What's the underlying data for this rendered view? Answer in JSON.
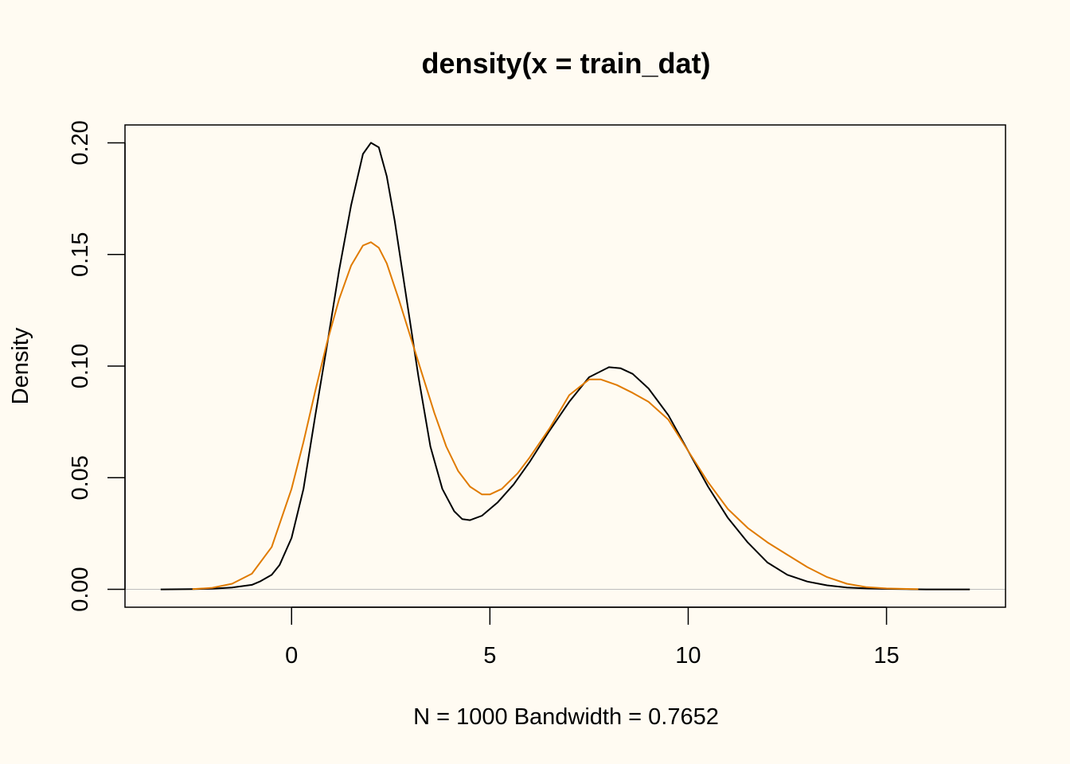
{
  "chart_data": {
    "type": "line",
    "title": "density(x = train_dat)",
    "xlabel": "N = 1000   Bandwidth = 0.7652",
    "ylabel": "Density",
    "xlim": [
      -4.2,
      18
    ],
    "ylim": [
      -0.008,
      0.208
    ],
    "xticks": [
      0,
      5,
      10,
      15
    ],
    "xtick_labels": [
      "0",
      "5",
      "10",
      "15"
    ],
    "yticks": [
      0,
      0.05,
      0.1,
      0.15,
      0.2
    ],
    "ytick_labels": [
      "0.00",
      "0.05",
      "0.10",
      "0.15",
      "0.20"
    ],
    "baseline": 0,
    "grid": false,
    "series": [
      {
        "color": "#000000",
        "x": [
          -3.3,
          -2.5,
          -2.0,
          -1.5,
          -1.0,
          -0.8,
          -0.5,
          -0.3,
          0.0,
          0.3,
          0.6,
          0.9,
          1.2,
          1.5,
          1.8,
          2.0,
          2.2,
          2.4,
          2.6,
          2.9,
          3.2,
          3.5,
          3.8,
          4.1,
          4.3,
          4.5,
          4.8,
          5.2,
          5.6,
          6.0,
          6.5,
          7.0,
          7.5,
          8.0,
          8.3,
          8.6,
          9.0,
          9.5,
          10.0,
          10.5,
          11.0,
          11.5,
          12.0,
          12.5,
          13.0,
          13.5,
          14.0,
          14.5,
          15.0,
          15.5,
          16.0,
          16.5,
          17.1
        ],
        "y": [
          0.0,
          0.0001,
          0.0003,
          0.0008,
          0.002,
          0.0035,
          0.0065,
          0.011,
          0.023,
          0.045,
          0.078,
          0.11,
          0.143,
          0.172,
          0.195,
          0.2,
          0.198,
          0.185,
          0.165,
          0.13,
          0.095,
          0.064,
          0.045,
          0.035,
          0.0315,
          0.031,
          0.033,
          0.039,
          0.047,
          0.057,
          0.071,
          0.084,
          0.095,
          0.0995,
          0.099,
          0.0965,
          0.09,
          0.078,
          0.062,
          0.046,
          0.032,
          0.021,
          0.012,
          0.0065,
          0.0035,
          0.0018,
          0.0008,
          0.0004,
          0.0002,
          0.0001,
          0.0,
          0.0,
          0.0
        ]
      },
      {
        "color": "#e07b00",
        "x": [
          -2.5,
          -2.0,
          -1.5,
          -1.0,
          -0.5,
          0.0,
          0.3,
          0.6,
          0.9,
          1.2,
          1.5,
          1.8,
          2.0,
          2.2,
          2.4,
          2.7,
          3.0,
          3.3,
          3.6,
          3.9,
          4.2,
          4.5,
          4.8,
          5.0,
          5.3,
          5.7,
          6.0,
          6.5,
          7.0,
          7.5,
          7.8,
          8.2,
          8.6,
          9.0,
          9.5,
          10.0,
          10.5,
          11.0,
          11.5,
          12.0,
          12.5,
          13.0,
          13.5,
          14.0,
          14.5,
          15.0,
          15.8
        ],
        "y": [
          0.0001,
          0.0007,
          0.0025,
          0.007,
          0.019,
          0.045,
          0.066,
          0.089,
          0.111,
          0.13,
          0.145,
          0.154,
          0.1555,
          0.153,
          0.146,
          0.13,
          0.113,
          0.096,
          0.079,
          0.064,
          0.053,
          0.046,
          0.0425,
          0.0425,
          0.045,
          0.052,
          0.059,
          0.072,
          0.087,
          0.094,
          0.094,
          0.0915,
          0.088,
          0.084,
          0.076,
          0.062,
          0.048,
          0.036,
          0.0275,
          0.021,
          0.0155,
          0.01,
          0.0055,
          0.0025,
          0.001,
          0.0004,
          0.0001
        ]
      }
    ]
  }
}
